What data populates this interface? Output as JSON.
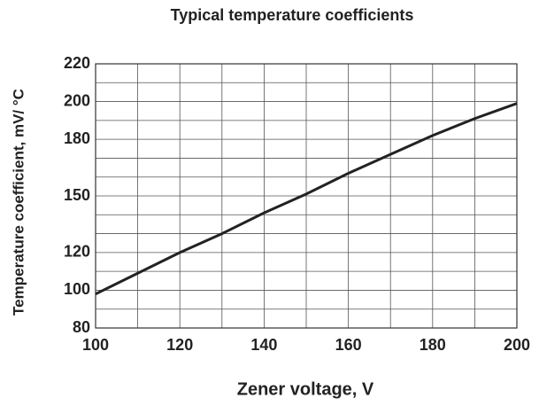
{
  "chart_data": {
    "type": "line",
    "title": "Typical temperature coefficients",
    "x_label": "Zener voltage, V",
    "y_label": "Temperature coefficient, mV/ °C",
    "x": [
      100,
      110,
      120,
      130,
      140,
      150,
      160,
      170,
      180,
      190,
      200
    ],
    "series": [
      {
        "name": "Temperature coefficient",
        "color": "#222222",
        "values": [
          98,
          109,
          120,
          130,
          141,
          151,
          162,
          172,
          182,
          191,
          199
        ]
      }
    ],
    "xlim": [
      100,
      200
    ],
    "xticks": [
      100,
      120,
      140,
      160,
      180,
      200
    ],
    "xgrid": [
      100,
      110,
      120,
      130,
      140,
      150,
      160,
      170,
      180,
      190,
      200
    ],
    "ylim": [
      80,
      220
    ],
    "yticks": [
      80,
      100,
      120,
      150,
      180,
      200,
      220
    ],
    "ygrid": [
      80,
      90,
      100,
      110,
      120,
      130,
      140,
      150,
      160,
      170,
      180,
      190,
      200,
      210,
      220
    ],
    "grid": true
  }
}
